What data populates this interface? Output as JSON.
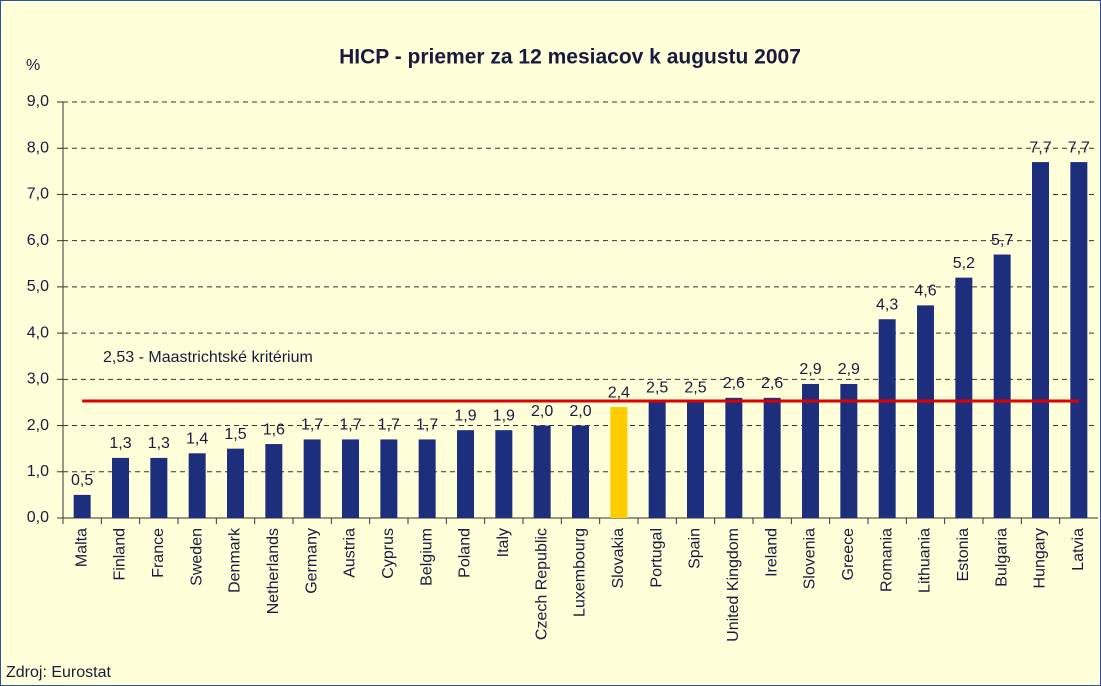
{
  "chart_data": {
    "type": "bar",
    "title": "HICP - priemer za 12 mesiacov k augustu 2007",
    "y_axis_label": "%",
    "source": "Zdroj: Eurostat",
    "categories": [
      "Malta",
      "Finland",
      "France",
      "Sweden",
      "Denmark",
      "Netherlands",
      "Germany",
      "Austria",
      "Cyprus",
      "Belgium",
      "Poland",
      "Italy",
      "Czech Republic",
      "Luxembourg",
      "Slovakia",
      "Portugal",
      "Spain",
      "United Kingdom",
      "Ireland",
      "Slovenia",
      "Greece",
      "Romania",
      "Lithuania",
      "Estonia",
      "Bulgaria",
      "Hungary",
      "Latvia"
    ],
    "values": [
      0.5,
      1.3,
      1.3,
      1.4,
      1.5,
      1.6,
      1.7,
      1.7,
      1.7,
      1.7,
      1.9,
      1.9,
      2.0,
      2.0,
      2.4,
      2.5,
      2.5,
      2.6,
      2.6,
      2.9,
      2.9,
      4.3,
      4.6,
      5.2,
      5.7,
      7.7,
      7.7
    ],
    "value_labels": [
      "0,5",
      "1,3",
      "1,3",
      "1,4",
      "1,5",
      "1,6",
      "1,7",
      "1,7",
      "1,7",
      "1,7",
      "1,9",
      "1,9",
      "2,0",
      "2,0",
      "2,4",
      "2,5",
      "2,5",
      "2,6",
      "2,6",
      "2,9",
      "2,9",
      "4,3",
      "4,6",
      "5,2",
      "5,7",
      "7,7",
      "7,7"
    ],
    "colors": [
      "#1c2e7c",
      "#1c2e7c",
      "#1c2e7c",
      "#1c2e7c",
      "#1c2e7c",
      "#1c2e7c",
      "#1c2e7c",
      "#1c2e7c",
      "#1c2e7c",
      "#1c2e7c",
      "#1c2e7c",
      "#1c2e7c",
      "#1c2e7c",
      "#1c2e7c",
      "#ffcc00",
      "#1c2e7c",
      "#1c2e7c",
      "#1c2e7c",
      "#1c2e7c",
      "#1c2e7c",
      "#1c2e7c",
      "#1c2e7c",
      "#1c2e7c",
      "#1c2e7c",
      "#1c2e7c",
      "#1c2e7c",
      "#1c2e7c"
    ],
    "reference_line": {
      "value": 2.53,
      "label": "2,53 - Maastrichtské kritérium",
      "color": "#e00000"
    },
    "ylim": [
      0,
      9
    ],
    "yticks": [
      {
        "value": 0,
        "label": "0,0"
      },
      {
        "value": 1,
        "label": "1,0"
      },
      {
        "value": 2,
        "label": "2,0"
      },
      {
        "value": 3,
        "label": "3,0"
      },
      {
        "value": 4,
        "label": "4,0"
      },
      {
        "value": 5,
        "label": "5,0"
      },
      {
        "value": 6,
        "label": "6,0"
      },
      {
        "value": 7,
        "label": "7,0"
      },
      {
        "value": 8,
        "label": "8,0"
      },
      {
        "value": 9,
        "label": "9,0"
      }
    ],
    "grid": true
  }
}
